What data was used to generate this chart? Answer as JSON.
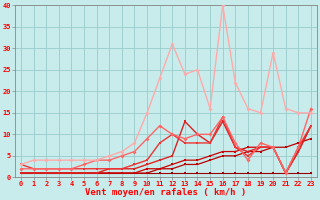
{
  "xlabel": "Vent moyen/en rafales ( km/h )",
  "xlim": [
    -0.5,
    23.5
  ],
  "ylim": [
    0,
    40
  ],
  "xticks": [
    0,
    1,
    2,
    3,
    4,
    5,
    6,
    7,
    8,
    9,
    10,
    11,
    12,
    13,
    14,
    15,
    16,
    17,
    18,
    19,
    20,
    21,
    22,
    23
  ],
  "yticks": [
    0,
    5,
    10,
    15,
    20,
    25,
    30,
    35,
    40
  ],
  "background_color": "#c8ecec",
  "grid_color": "#99cccc",
  "series": [
    {
      "x": [
        0,
        1,
        2,
        3,
        4,
        5,
        6,
        7,
        8,
        9,
        10,
        11,
        12,
        13,
        14,
        15,
        16,
        17,
        18,
        19,
        20,
        21,
        22,
        23
      ],
      "y": [
        1,
        1,
        1,
        1,
        1,
        1,
        1,
        1,
        1,
        1,
        1,
        1,
        1,
        1,
        1,
        1,
        1,
        1,
        1,
        1,
        1,
        1,
        1,
        1
      ],
      "color": "#990000",
      "lw": 0.8,
      "marker": "s",
      "ms": 1.5
    },
    {
      "x": [
        0,
        1,
        2,
        3,
        4,
        5,
        6,
        7,
        8,
        9,
        10,
        11,
        12,
        13,
        14,
        15,
        16,
        17,
        18,
        19,
        20,
        21,
        22,
        23
      ],
      "y": [
        1,
        1,
        1,
        1,
        1,
        1,
        1,
        1,
        1,
        1,
        1,
        2,
        2,
        3,
        3,
        4,
        5,
        5,
        6,
        6,
        7,
        7,
        8,
        9
      ],
      "color": "#bb0000",
      "lw": 0.9,
      "marker": "s",
      "ms": 1.8
    },
    {
      "x": [
        0,
        1,
        2,
        3,
        4,
        5,
        6,
        7,
        8,
        9,
        10,
        11,
        12,
        13,
        14,
        15,
        16,
        17,
        18,
        19,
        20,
        21,
        22,
        23
      ],
      "y": [
        1,
        1,
        1,
        1,
        1,
        1,
        1,
        1,
        1,
        1,
        2,
        2,
        3,
        4,
        4,
        5,
        6,
        6,
        7,
        7,
        7,
        1,
        6,
        12
      ],
      "color": "#cc0000",
      "lw": 0.9,
      "marker": "s",
      "ms": 1.8
    },
    {
      "x": [
        0,
        1,
        2,
        3,
        4,
        5,
        6,
        7,
        8,
        9,
        10,
        11,
        12,
        13,
        14,
        15,
        16,
        17,
        18,
        19,
        20,
        21,
        22,
        23
      ],
      "y": [
        1,
        1,
        1,
        1,
        1,
        1,
        1,
        2,
        2,
        2,
        3,
        4,
        5,
        13,
        10,
        8,
        13,
        7,
        6,
        7,
        7,
        1,
        6,
        12
      ],
      "color": "#dd2222",
      "lw": 1.0,
      "marker": "s",
      "ms": 2.0
    },
    {
      "x": [
        0,
        1,
        2,
        3,
        4,
        5,
        6,
        7,
        8,
        9,
        10,
        11,
        12,
        13,
        14,
        15,
        16,
        17,
        18,
        19,
        20,
        21,
        22,
        23
      ],
      "y": [
        3,
        2,
        2,
        2,
        2,
        2,
        2,
        2,
        2,
        3,
        4,
        8,
        10,
        8,
        8,
        8,
        14,
        7,
        5,
        7,
        7,
        1,
        7,
        12
      ],
      "color": "#ee3333",
      "lw": 1.0,
      "marker": "s",
      "ms": 2.0
    },
    {
      "x": [
        0,
        1,
        2,
        3,
        4,
        5,
        6,
        7,
        8,
        9,
        10,
        11,
        12,
        13,
        14,
        15,
        16,
        17,
        18,
        19,
        20,
        21,
        22,
        23
      ],
      "y": [
        2,
        2,
        2,
        2,
        2,
        3,
        4,
        4,
        5,
        6,
        9,
        12,
        10,
        9,
        10,
        10,
        14,
        8,
        4,
        8,
        7,
        1,
        7,
        16
      ],
      "color": "#ff6666",
      "lw": 1.0,
      "marker": "D",
      "ms": 2.0
    },
    {
      "x": [
        0,
        1,
        2,
        3,
        4,
        5,
        6,
        7,
        8,
        9,
        10,
        11,
        12,
        13,
        14,
        15,
        16,
        17,
        18,
        19,
        20,
        21,
        22,
        23
      ],
      "y": [
        3,
        4,
        4,
        4,
        4,
        4,
        4,
        5,
        6,
        8,
        15,
        23,
        31,
        24,
        25,
        16,
        40,
        22,
        16,
        15,
        29,
        16,
        15,
        15
      ],
      "color": "#ffaaaa",
      "lw": 1.0,
      "marker": "D",
      "ms": 2.0
    }
  ],
  "tick_fontsize": 5,
  "label_fontsize": 6.5
}
